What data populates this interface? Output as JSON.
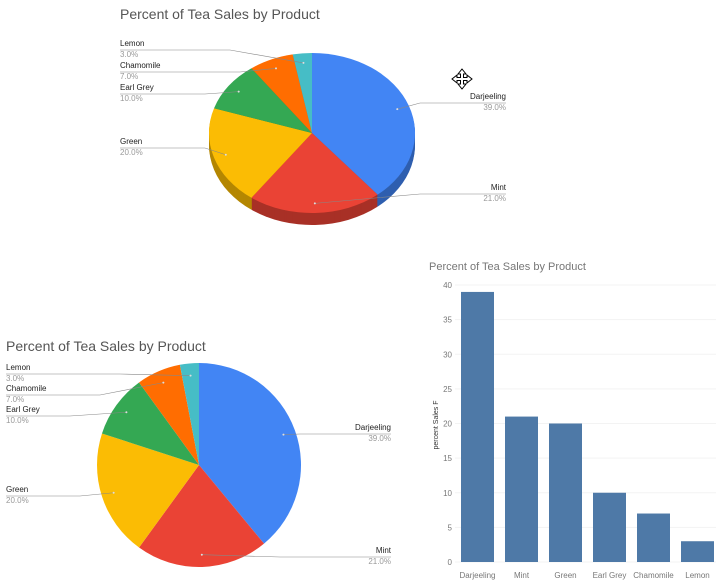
{
  "colors": {
    "Darjeeling": "#4285f4",
    "Mint": "#ea4335",
    "Green": "#fbbc04",
    "Earl Grey": "#34a853",
    "Chamomile": "#ff6d01",
    "Lemon": "#46bdc6",
    "bar": "#4e79a7"
  },
  "cursor_icon": "move-cursor-icon",
  "chart_data": [
    {
      "type": "pie",
      "style": "3d",
      "title": "Percent of Tea Sales by Product",
      "categories": [
        "Darjeeling",
        "Mint",
        "Green",
        "Earl Grey",
        "Chamomile",
        "Lemon"
      ],
      "values": [
        39,
        21,
        20,
        10,
        7,
        3
      ],
      "labels": [
        "39.0%",
        "21.0%",
        "20.0%",
        "10.0%",
        "7.0%",
        "3.0%"
      ]
    },
    {
      "type": "pie",
      "title": "Percent of Tea Sales by Product",
      "categories": [
        "Darjeeling",
        "Mint",
        "Green",
        "Earl Grey",
        "Chamomile",
        "Lemon"
      ],
      "values": [
        39,
        21,
        20,
        10,
        7,
        3
      ],
      "labels": [
        "39.0%",
        "21.0%",
        "20.0%",
        "10.0%",
        "7.0%",
        "3.0%"
      ]
    },
    {
      "type": "bar",
      "title": "Percent of Tea Sales by Product",
      "xlabel": "",
      "ylabel": "percent Sales F",
      "categories": [
        "Darjeeling",
        "Mint",
        "Green",
        "Earl Grey",
        "Chamomile",
        "Lemon"
      ],
      "values": [
        39,
        21,
        20,
        10,
        7,
        3
      ],
      "ylim": [
        0,
        40
      ],
      "yticks": [
        0,
        5,
        10,
        15,
        20,
        25,
        30,
        35,
        40
      ],
      "grid": true
    }
  ]
}
